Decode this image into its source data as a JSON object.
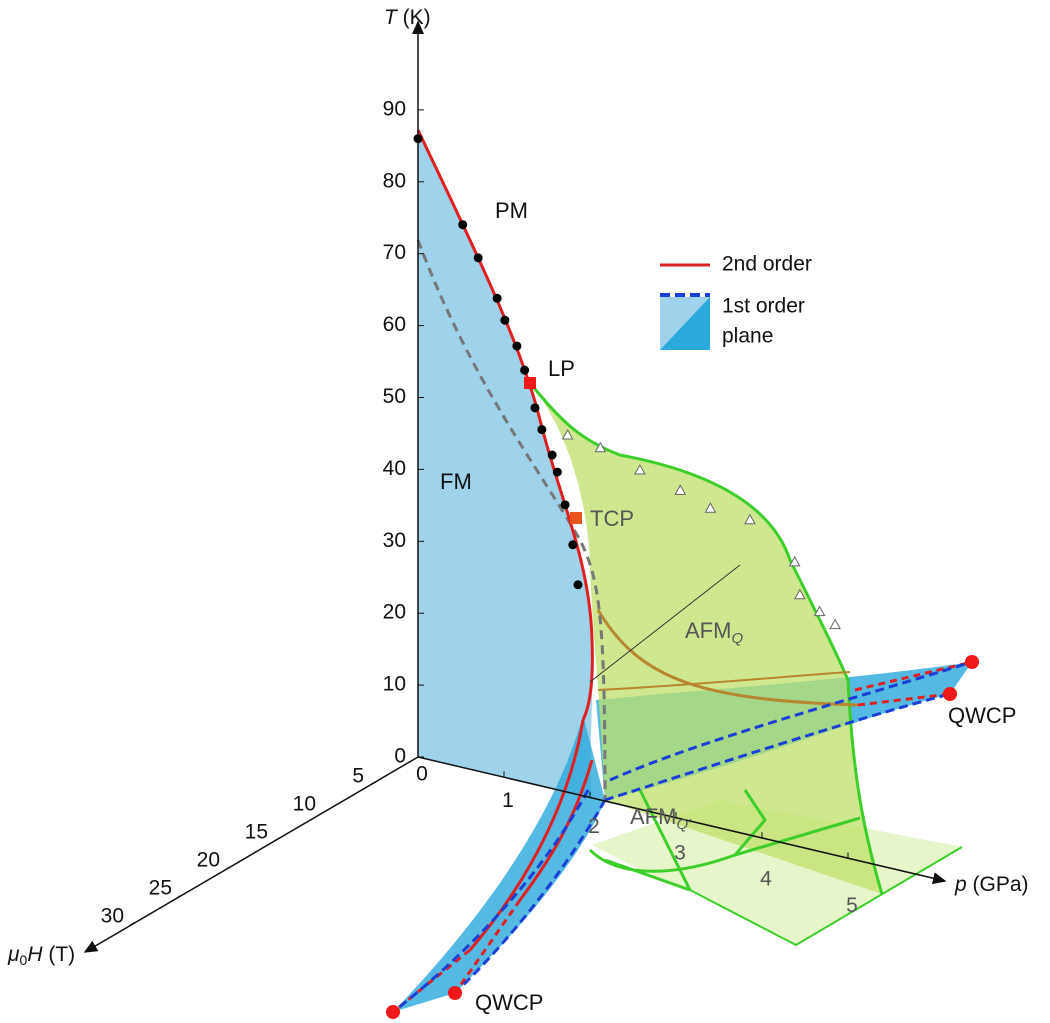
{
  "axes": {
    "t": {
      "symbol": "T",
      "unit": "(K)",
      "ticks": [
        0,
        10,
        20,
        30,
        40,
        50,
        60,
        70,
        80,
        90
      ]
    },
    "p": {
      "symbol": "p",
      "unit": "(GPa)",
      "ticks": [
        0,
        1,
        2,
        3,
        4,
        5
      ]
    },
    "h": {
      "symbol": "μ",
      "subscript": "0",
      "symbol2": "H",
      "unit": "(T)",
      "ticks": [
        5,
        10,
        15,
        20,
        25,
        30
      ]
    }
  },
  "legend": {
    "second_order": "2nd order",
    "first_order": "1st order",
    "first_order_line2": "plane"
  },
  "regions": {
    "pm": {
      "text": "PM"
    },
    "fm": {
      "text": "FM"
    },
    "afm_q": {
      "text": "AFM",
      "subscript": "Q"
    },
    "afm_q2": {
      "text": "AFM",
      "subscript": "Q′"
    }
  },
  "special_points": {
    "lp": "LP",
    "tcp": "TCP",
    "qwcp_right": "QWCP",
    "qwcp_left": "QWCP"
  },
  "data": {
    "circles": {
      "p": [
        0,
        0.52,
        0.7,
        0.92,
        1.01,
        1.15,
        1.24,
        1.36,
        1.44,
        1.56,
        1.62,
        1.71,
        1.8,
        1.86
      ],
      "T": [
        86,
        75.5,
        71.4,
        66.4,
        63.6,
        60.4,
        57.3,
        52.4,
        49.6,
        46.4,
        44.2,
        39.9,
        34.6,
        29.2
      ]
    },
    "triangles": {
      "p": [
        1.74,
        2.12,
        2.58,
        3.05,
        3.4,
        3.86,
        4.38,
        4.44,
        4.67,
        4.85
      ],
      "T": [
        49.7,
        49.0,
        47.2,
        45.7,
        44.2,
        43.9,
        39.5,
        35.1,
        33.4,
        32.1
      ]
    }
  }
}
